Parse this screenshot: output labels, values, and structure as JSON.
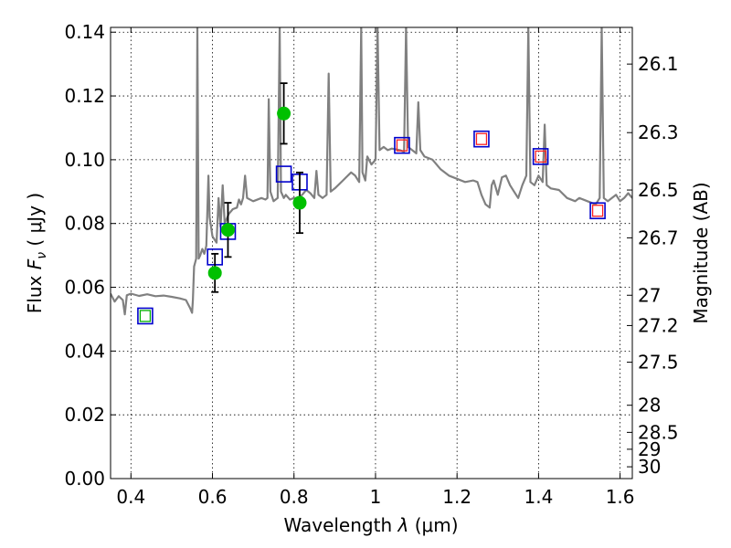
{
  "chart_data": {
    "type": "scatter",
    "xlabel_prefix": "Wavelength",
    "xlabel_var": "λ",
    "xlabel_unit": "(μm)",
    "ylabel_prefix": "Flux",
    "ylabel_var": "F",
    "ylabel_sub": "ν",
    "ylabel_unit": "( μJy )",
    "y2label": "Magnitude (AB)",
    "xlim": [
      0.35,
      1.63
    ],
    "ylim": [
      0.0,
      0.1415
    ],
    "grid": true,
    "xticks": [
      0.4,
      0.6,
      0.8,
      1.0,
      1.2,
      1.4,
      1.6
    ],
    "xtick_labels": [
      "0.4",
      "0.6",
      "0.8",
      "1",
      "1.2",
      "1.4",
      "1.6"
    ],
    "yticks": [
      0.0,
      0.02,
      0.04,
      0.06,
      0.08,
      0.1,
      0.12,
      0.14
    ],
    "ytick_labels": [
      "0.00",
      "0.02",
      "0.04",
      "0.06",
      "0.08",
      "0.10",
      "0.12",
      "0.14"
    ],
    "y2ticks": [
      {
        "label": "26.1",
        "flux": 0.13
      },
      {
        "label": "26.3",
        "flux": 0.1085
      },
      {
        "label": "26.5",
        "flux": 0.0905
      },
      {
        "label": "26.7",
        "flux": 0.0755
      },
      {
        "label": "27",
        "flux": 0.0575
      },
      {
        "label": "27.2",
        "flux": 0.048
      },
      {
        "label": "27.5",
        "flux": 0.0365
      },
      {
        "label": "28",
        "flux": 0.023
      },
      {
        "label": "28.5",
        "flux": 0.0145
      },
      {
        "label": "29",
        "flux": 0.0092
      },
      {
        "label": "30",
        "flux": 0.0037
      }
    ],
    "colors": {
      "model": "#808080",
      "observed": "#00c000",
      "model_phot": "#0000cc",
      "square_inner_red": "#ff2020",
      "square_inner_green": "#00b000",
      "errorbar": "#000000"
    },
    "model_spectrum": [
      [
        0.35,
        0.058
      ],
      [
        0.36,
        0.0555
      ],
      [
        0.37,
        0.0572
      ],
      [
        0.38,
        0.056
      ],
      [
        0.385,
        0.0515
      ],
      [
        0.39,
        0.0575
      ],
      [
        0.4,
        0.058
      ],
      [
        0.42,
        0.0573
      ],
      [
        0.44,
        0.0578
      ],
      [
        0.46,
        0.0572
      ],
      [
        0.48,
        0.0574
      ],
      [
        0.5,
        0.057
      ],
      [
        0.52,
        0.0565
      ],
      [
        0.535,
        0.056
      ],
      [
        0.545,
        0.0535
      ],
      [
        0.55,
        0.052
      ],
      [
        0.552,
        0.056
      ],
      [
        0.555,
        0.0665
      ],
      [
        0.558,
        0.068
      ],
      [
        0.56,
        0.069
      ],
      [
        0.563,
        0.1415
      ],
      [
        0.566,
        0.069
      ],
      [
        0.57,
        0.07
      ],
      [
        0.575,
        0.072
      ],
      [
        0.58,
        0.0705
      ],
      [
        0.585,
        0.073
      ],
      [
        0.59,
        0.095
      ],
      [
        0.593,
        0.082
      ],
      [
        0.6,
        0.076
      ],
      [
        0.61,
        0.074
      ],
      [
        0.615,
        0.088
      ],
      [
        0.62,
        0.079
      ],
      [
        0.625,
        0.092
      ],
      [
        0.63,
        0.08
      ],
      [
        0.64,
        0.083
      ],
      [
        0.65,
        0.0845
      ],
      [
        0.66,
        0.085
      ],
      [
        0.665,
        0.0875
      ],
      [
        0.67,
        0.086
      ],
      [
        0.675,
        0.088
      ],
      [
        0.68,
        0.095
      ],
      [
        0.685,
        0.088
      ],
      [
        0.7,
        0.087
      ],
      [
        0.72,
        0.088
      ],
      [
        0.73,
        0.0875
      ],
      [
        0.735,
        0.088
      ],
      [
        0.738,
        0.119
      ],
      [
        0.742,
        0.09
      ],
      [
        0.75,
        0.087
      ],
      [
        0.76,
        0.088
      ],
      [
        0.765,
        0.1415
      ],
      [
        0.768,
        0.09
      ],
      [
        0.775,
        0.088
      ],
      [
        0.78,
        0.089
      ],
      [
        0.79,
        0.0875
      ],
      [
        0.8,
        0.088
      ],
      [
        0.81,
        0.088
      ],
      [
        0.82,
        0.089
      ],
      [
        0.83,
        0.0905
      ],
      [
        0.84,
        0.0895
      ],
      [
        0.85,
        0.088
      ],
      [
        0.855,
        0.0965
      ],
      [
        0.86,
        0.089
      ],
      [
        0.87,
        0.088
      ],
      [
        0.88,
        0.089
      ],
      [
        0.885,
        0.127
      ],
      [
        0.89,
        0.09
      ],
      [
        0.9,
        0.091
      ],
      [
        0.92,
        0.0935
      ],
      [
        0.94,
        0.096
      ],
      [
        0.95,
        0.095
      ],
      [
        0.96,
        0.093
      ],
      [
        0.965,
        0.1415
      ],
      [
        0.968,
        0.096
      ],
      [
        0.975,
        0.0935
      ],
      [
        0.98,
        0.101
      ],
      [
        0.99,
        0.0985
      ],
      [
        1.0,
        0.1
      ],
      [
        1.005,
        0.1415
      ],
      [
        1.01,
        0.103
      ],
      [
        1.02,
        0.104
      ],
      [
        1.03,
        0.103
      ],
      [
        1.04,
        0.1035
      ],
      [
        1.06,
        0.103
      ],
      [
        1.07,
        0.1025
      ],
      [
        1.075,
        0.1415
      ],
      [
        1.08,
        0.104
      ],
      [
        1.09,
        0.103
      ],
      [
        1.1,
        0.102
      ],
      [
        1.105,
        0.118
      ],
      [
        1.11,
        0.103
      ],
      [
        1.12,
        0.101
      ],
      [
        1.14,
        0.1
      ],
      [
        1.16,
        0.097
      ],
      [
        1.18,
        0.095
      ],
      [
        1.2,
        0.094
      ],
      [
        1.22,
        0.093
      ],
      [
        1.24,
        0.0935
      ],
      [
        1.25,
        0.093
      ],
      [
        1.26,
        0.089
      ],
      [
        1.27,
        0.086
      ],
      [
        1.28,
        0.085
      ],
      [
        1.285,
        0.092
      ],
      [
        1.29,
        0.0935
      ],
      [
        1.3,
        0.089
      ],
      [
        1.31,
        0.0945
      ],
      [
        1.32,
        0.095
      ],
      [
        1.33,
        0.092
      ],
      [
        1.34,
        0.09
      ],
      [
        1.35,
        0.088
      ],
      [
        1.36,
        0.092
      ],
      [
        1.37,
        0.095
      ],
      [
        1.375,
        0.1415
      ],
      [
        1.38,
        0.093
      ],
      [
        1.39,
        0.092
      ],
      [
        1.4,
        0.095
      ],
      [
        1.41,
        0.093
      ],
      [
        1.415,
        0.111
      ],
      [
        1.42,
        0.092
      ],
      [
        1.43,
        0.091
      ],
      [
        1.45,
        0.0905
      ],
      [
        1.47,
        0.088
      ],
      [
        1.49,
        0.087
      ],
      [
        1.5,
        0.088
      ],
      [
        1.52,
        0.087
      ],
      [
        1.54,
        0.086
      ],
      [
        1.55,
        0.088
      ],
      [
        1.555,
        0.1415
      ],
      [
        1.56,
        0.088
      ],
      [
        1.57,
        0.087
      ],
      [
        1.58,
        0.088
      ],
      [
        1.59,
        0.089
      ],
      [
        1.6,
        0.087
      ],
      [
        1.61,
        0.088
      ],
      [
        1.62,
        0.0895
      ],
      [
        1.63,
        0.088
      ]
    ],
    "model_photometry": [
      {
        "x": 0.435,
        "y": 0.051,
        "inner": "green"
      },
      {
        "x": 0.606,
        "y": 0.0695,
        "inner": "none"
      },
      {
        "x": 0.638,
        "y": 0.0775,
        "inner": "none"
      },
      {
        "x": 0.775,
        "y": 0.0955,
        "inner": "none"
      },
      {
        "x": 0.814,
        "y": 0.093,
        "inner": "none"
      },
      {
        "x": 1.065,
        "y": 0.1045,
        "inner": "red"
      },
      {
        "x": 1.26,
        "y": 0.1065,
        "inner": "red"
      },
      {
        "x": 1.405,
        "y": 0.101,
        "inner": "red"
      },
      {
        "x": 1.545,
        "y": 0.084,
        "inner": "red"
      }
    ],
    "observed_photometry": [
      {
        "x": 0.606,
        "y": 0.0645,
        "err": 0.006
      },
      {
        "x": 0.638,
        "y": 0.078,
        "err": 0.0085
      },
      {
        "x": 0.775,
        "y": 0.1145,
        "err": 0.0095
      },
      {
        "x": 0.814,
        "y": 0.0865,
        "err": 0.0095
      }
    ]
  }
}
